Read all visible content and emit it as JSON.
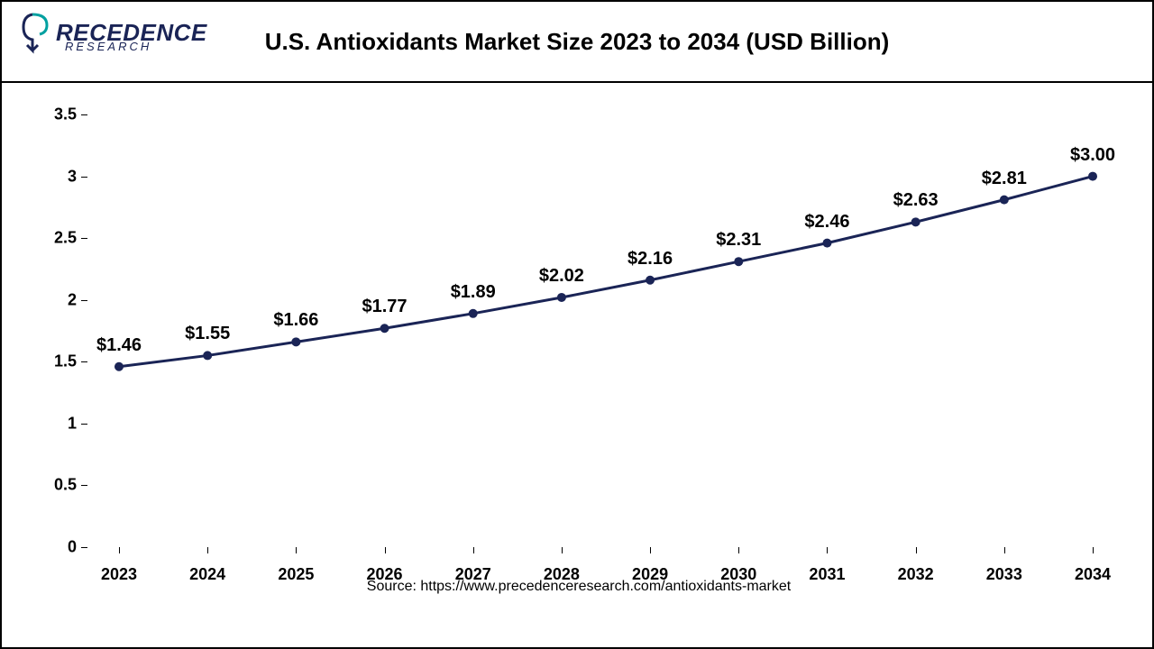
{
  "logo": {
    "main": "RECEDENCE",
    "sub": "RESEARCH",
    "color": "#1a2456",
    "accent": "#00a0a0"
  },
  "title": "U.S. Antioxidants Market Size 2023 to 2034 (USD Billion)",
  "chart": {
    "type": "line",
    "years": [
      "2023",
      "2024",
      "2025",
      "2026",
      "2027",
      "2028",
      "2029",
      "2030",
      "2031",
      "2032",
      "2033",
      "2034"
    ],
    "values": [
      1.46,
      1.55,
      1.66,
      1.77,
      1.89,
      2.02,
      2.16,
      2.31,
      2.46,
      2.63,
      2.81,
      3.0
    ],
    "labels": [
      "$1.46",
      "$1.55",
      "$1.66",
      "$1.77",
      "$1.89",
      "$2.02",
      "$2.16",
      "$2.31",
      "$2.46",
      "$2.63",
      "$2.81",
      "$3.00"
    ],
    "yticks": [
      0,
      0.5,
      1,
      1.5,
      2,
      2.5,
      3,
      3.5
    ],
    "ytick_labels": [
      "0",
      "0.5",
      "1",
      "1.5",
      "2",
      "2.5",
      "3",
      "3.5"
    ],
    "ylim": [
      0,
      3.5
    ],
    "line_color": "#1a2456",
    "line_width": 3,
    "marker_size": 5,
    "marker_color": "#1a2456",
    "background_color": "#ffffff",
    "axis_fontsize": 18,
    "label_fontsize": 20,
    "title_fontsize": 26
  },
  "source": "Source: https://www.precedenceresearch.com/antioxidants-market"
}
